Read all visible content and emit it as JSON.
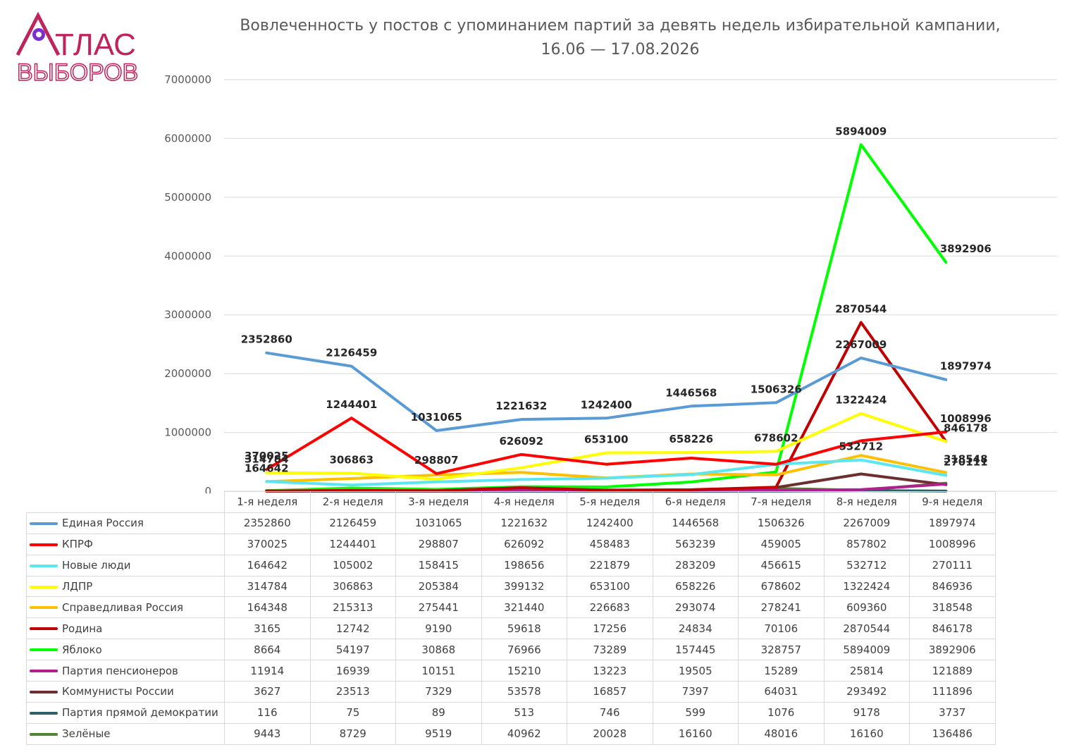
{
  "logo": {
    "line1": "ТЛАС",
    "line2": "ВЫБОРОВ",
    "color": "#c0245c",
    "accent": "#7b2fd1"
  },
  "title_line1": "Вовлеченность у постов с упоминанием партий за девять недель избирательной кампании,",
  "title_line2": "16.06 — 17.08.2026",
  "chart_data": {
    "type": "line",
    "categories": [
      "1-я неделя",
      "2-я неделя",
      "3-я неделя",
      "4-я неделя",
      "5-я неделя",
      "6-я неделя",
      "7-я неделя",
      "8-я неделя",
      "9-я неделя"
    ],
    "ylim": [
      0,
      7000000
    ],
    "yticks": [
      0,
      1000000,
      2000000,
      3000000,
      4000000,
      5000000,
      6000000,
      7000000
    ],
    "grid": true,
    "legend": "data table below chart",
    "series": [
      {
        "name": "Единая Россия",
        "color": "#5b9bd5",
        "values": [
          2352860,
          2126459,
          1031065,
          1221632,
          1242400,
          1446568,
          1506326,
          2267009,
          1897974
        ]
      },
      {
        "name": "КПРФ",
        "color": "#ff0000",
        "values": [
          370025,
          1244401,
          298807,
          626092,
          458483,
          563239,
          459005,
          857802,
          1008996
        ]
      },
      {
        "name": "Новые люди",
        "color": "#5ce6f0",
        "values": [
          164642,
          105002,
          158415,
          198656,
          221879,
          283209,
          456615,
          532712,
          270111
        ]
      },
      {
        "name": "ЛДПР",
        "color": "#ffff00",
        "values": [
          314784,
          306863,
          205384,
          399132,
          653100,
          658226,
          678602,
          1322424,
          846936
        ]
      },
      {
        "name": "Справедливая Россия",
        "color": "#ffc000",
        "values": [
          164348,
          215313,
          275441,
          321440,
          226683,
          293074,
          278241,
          609360,
          318548
        ]
      },
      {
        "name": "Родина",
        "color": "#c00000",
        "values": [
          3165,
          12742,
          9190,
          59618,
          17256,
          24834,
          70106,
          2870544,
          846178
        ]
      },
      {
        "name": "Яблоко",
        "color": "#00ff00",
        "values": [
          8664,
          54197,
          30868,
          76966,
          73289,
          157445,
          328757,
          5894009,
          3892906
        ]
      },
      {
        "name": "Партия пенсионеров",
        "color": "#b0208c",
        "values": [
          11914,
          16939,
          10151,
          15210,
          13223,
          19505,
          15289,
          25814,
          121889
        ]
      },
      {
        "name": "Коммунисты России",
        "color": "#6b2f2f",
        "values": [
          3627,
          23513,
          7329,
          53578,
          16857,
          7397,
          64031,
          293492,
          111896
        ]
      },
      {
        "name": "Партия прямой демократии",
        "color": "#2f5f6b",
        "values": [
          116,
          75,
          89,
          513,
          746,
          599,
          1076,
          9178,
          3737
        ]
      },
      {
        "name": "Зелёные",
        "color": "#548235",
        "values": [
          9443,
          8729,
          9519,
          40962,
          20028,
          16160,
          48016,
          16160,
          136486
        ]
      }
    ],
    "data_labels": [
      {
        "series": 0,
        "points": [
          0,
          1,
          2,
          3,
          4,
          5,
          6,
          7,
          8
        ]
      },
      {
        "series": 1,
        "points": [
          0,
          1,
          2,
          3,
          8
        ]
      },
      {
        "series": 2,
        "points": [
          0,
          7,
          8
        ]
      },
      {
        "series": 3,
        "points": [
          0,
          1,
          4,
          5,
          6,
          7
        ]
      },
      {
        "series": 4,
        "points": [
          8
        ]
      },
      {
        "series": 5,
        "points": [
          7,
          8
        ]
      },
      {
        "series": 6,
        "points": [
          7,
          8
        ]
      }
    ]
  }
}
